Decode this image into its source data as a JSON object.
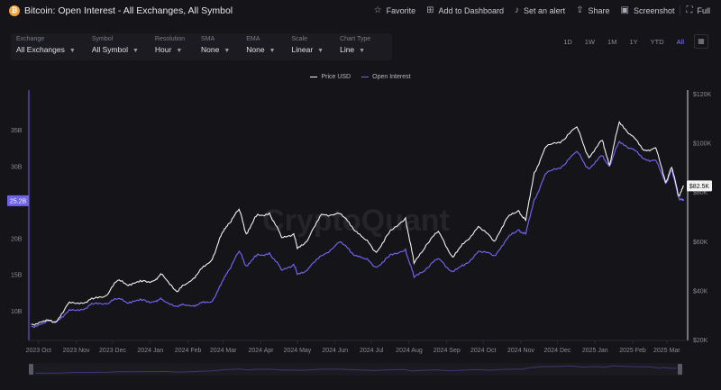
{
  "header": {
    "title": "Bitcoin: Open Interest - All Exchanges, All Symbol",
    "coin_glyph": "₿",
    "actions": [
      {
        "label": "Favorite",
        "icon": "star-icon",
        "glyph": "☆"
      },
      {
        "label": "Add to Dashboard",
        "icon": "dashboard-icon",
        "glyph": "⊞"
      },
      {
        "label": "Set an alert",
        "icon": "bell-icon",
        "glyph": "♪"
      },
      {
        "label": "Share",
        "icon": "share-icon",
        "glyph": "⇪"
      },
      {
        "label": "Screenshot",
        "icon": "camera-icon",
        "glyph": "▣"
      },
      {
        "label": "Full",
        "icon": "fullscreen-icon",
        "glyph": "⛶"
      }
    ]
  },
  "controls": [
    {
      "label": "Exchange",
      "value": "All Exchanges"
    },
    {
      "label": "Symbol",
      "value": "All Symbol"
    },
    {
      "label": "Resolution",
      "value": "Hour"
    },
    {
      "label": "SMA",
      "value": "None"
    },
    {
      "label": "EMA",
      "value": "None"
    },
    {
      "label": "Scale",
      "value": "Linear"
    },
    {
      "label": "Chart Type",
      "value": "Line"
    }
  ],
  "ranges": [
    "1D",
    "1W",
    "1M",
    "1Y",
    "YTD",
    "All"
  ],
  "active_range": "All",
  "colors": {
    "price": "#f2f2f2",
    "oi": "#6f63e8",
    "badge": "#6f63e8",
    "bg": "#141419"
  },
  "chart_data": {
    "type": "line",
    "watermark": "CryptoQuant",
    "x_tick_labels": [
      "2023 Oct",
      "2023 Nov",
      "2023 Dec",
      "2024 Jan",
      "2024 Feb",
      "2024 Mar",
      "2024 Apr",
      "2024 May",
      "2024 Jun",
      "2024 Jul",
      "2024 Aug",
      "2024 Sep",
      "2024 Oct",
      "2024 Nov",
      "2024 Dec",
      "2025 Jan",
      "2025 Feb",
      "2025 Mar"
    ],
    "left_axis": {
      "ticks": [
        "10B",
        "15B",
        "20B",
        "30B",
        "35B"
      ],
      "tick_values": [
        10,
        15,
        20,
        30,
        35
      ],
      "ylim": [
        6,
        40
      ]
    },
    "right_axis": {
      "ticks": [
        "$20K",
        "$40K",
        "$60K",
        "$80K",
        "$100K",
        "$120K"
      ],
      "tick_values": [
        20000,
        40000,
        60000,
        80000,
        100000,
        120000
      ],
      "ylim": [
        20000,
        120000
      ]
    },
    "current_oi_label": "25.2B",
    "current_price_label": "$82.5K",
    "series": [
      {
        "name": "Price USD",
        "axis": "right",
        "points": [
          [
            "2023-09-25",
            26200
          ],
          [
            "2023-10-05",
            27600
          ],
          [
            "2023-10-15",
            27000
          ],
          [
            "2023-10-25",
            34300
          ],
          [
            "2023-11-05",
            35000
          ],
          [
            "2023-11-15",
            36500
          ],
          [
            "2023-11-25",
            37700
          ],
          [
            "2023-12-05",
            44000
          ],
          [
            "2023-12-15",
            42500
          ],
          [
            "2023-12-25",
            43500
          ],
          [
            "2024-01-05",
            44200
          ],
          [
            "2024-01-11",
            46500
          ],
          [
            "2024-01-23",
            39500
          ],
          [
            "2024-02-01",
            43000
          ],
          [
            "2024-02-10",
            47500
          ],
          [
            "2024-02-20",
            52000
          ],
          [
            "2024-02-28",
            62000
          ],
          [
            "2024-03-05",
            67000
          ],
          [
            "2024-03-14",
            73000
          ],
          [
            "2024-03-20",
            63000
          ],
          [
            "2024-03-28",
            70000
          ],
          [
            "2024-04-08",
            71500
          ],
          [
            "2024-04-18",
            61500
          ],
          [
            "2024-04-28",
            63000
          ],
          [
            "2024-05-01",
            57000
          ],
          [
            "2024-05-10",
            61000
          ],
          [
            "2024-05-21",
            71000
          ],
          [
            "2024-06-05",
            71200
          ],
          [
            "2024-06-15",
            66000
          ],
          [
            "2024-06-25",
            61000
          ],
          [
            "2024-07-05",
            55500
          ],
          [
            "2024-07-15",
            63000
          ],
          [
            "2024-07-29",
            69500
          ],
          [
            "2024-08-05",
            51000
          ],
          [
            "2024-08-15",
            58500
          ],
          [
            "2024-08-25",
            64000
          ],
          [
            "2024-09-06",
            53500
          ],
          [
            "2024-09-15",
            59000
          ],
          [
            "2024-09-27",
            66000
          ],
          [
            "2024-10-10",
            60000
          ],
          [
            "2024-10-20",
            69000
          ],
          [
            "2024-10-30",
            72500
          ],
          [
            "2024-11-05",
            68500
          ],
          [
            "2024-11-12",
            88000
          ],
          [
            "2024-11-22",
            98500
          ],
          [
            "2024-12-05",
            101000
          ],
          [
            "2024-12-17",
            106500
          ],
          [
            "2024-12-27",
            94000
          ],
          [
            "2025-01-07",
            101000
          ],
          [
            "2025-01-13",
            91000
          ],
          [
            "2025-01-21",
            108500
          ],
          [
            "2025-01-31",
            103000
          ],
          [
            "2025-02-10",
            97000
          ],
          [
            "2025-02-20",
            98000
          ],
          [
            "2025-02-28",
            84000
          ],
          [
            "2025-03-05",
            90000
          ],
          [
            "2025-03-11",
            78500
          ],
          [
            "2025-03-15",
            82500
          ]
        ]
      },
      {
        "name": "Open Interest",
        "axis": "left",
        "points": [
          [
            "2023-09-25",
            7.8
          ],
          [
            "2023-10-05",
            8.3
          ],
          [
            "2023-10-15",
            8.5
          ],
          [
            "2023-10-25",
            9.8
          ],
          [
            "2023-11-05",
            10.2
          ],
          [
            "2023-11-15",
            10.9
          ],
          [
            "2023-11-25",
            11.0
          ],
          [
            "2023-12-05",
            11.6
          ],
          [
            "2023-12-15",
            11.2
          ],
          [
            "2023-12-25",
            11.4
          ],
          [
            "2024-01-05",
            11.3
          ],
          [
            "2024-01-11",
            11.5
          ],
          [
            "2024-01-23",
            10.6
          ],
          [
            "2024-02-01",
            10.7
          ],
          [
            "2024-02-10",
            10.9
          ],
          [
            "2024-02-20",
            11.2
          ],
          [
            "2024-02-28",
            13.5
          ],
          [
            "2024-03-05",
            15.5
          ],
          [
            "2024-03-14",
            18.2
          ],
          [
            "2024-03-20",
            16.2
          ],
          [
            "2024-03-28",
            17.5
          ],
          [
            "2024-04-08",
            18.0
          ],
          [
            "2024-04-18",
            15.6
          ],
          [
            "2024-04-28",
            16.4
          ],
          [
            "2024-05-01",
            15.0
          ],
          [
            "2024-05-10",
            15.8
          ],
          [
            "2024-05-21",
            17.6
          ],
          [
            "2024-06-05",
            19.5
          ],
          [
            "2024-06-15",
            18.0
          ],
          [
            "2024-06-25",
            17.2
          ],
          [
            "2024-07-05",
            16.0
          ],
          [
            "2024-07-15",
            17.4
          ],
          [
            "2024-07-29",
            18.5
          ],
          [
            "2024-08-05",
            14.6
          ],
          [
            "2024-08-15",
            15.8
          ],
          [
            "2024-08-25",
            17.2
          ],
          [
            "2024-09-06",
            15.4
          ],
          [
            "2024-09-15",
            16.2
          ],
          [
            "2024-09-27",
            18.2
          ],
          [
            "2024-10-10",
            17.6
          ],
          [
            "2024-10-20",
            19.8
          ],
          [
            "2024-10-30",
            21.2
          ],
          [
            "2024-11-05",
            20.6
          ],
          [
            "2024-11-12",
            25.4
          ],
          [
            "2024-11-22",
            29.0
          ],
          [
            "2024-12-05",
            30.0
          ],
          [
            "2024-12-17",
            32.0
          ],
          [
            "2024-12-27",
            29.6
          ],
          [
            "2025-01-07",
            31.4
          ],
          [
            "2025-01-13",
            30.0
          ],
          [
            "2025-01-21",
            33.4
          ],
          [
            "2025-01-31",
            32.4
          ],
          [
            "2025-02-10",
            31.0
          ],
          [
            "2025-02-20",
            30.8
          ],
          [
            "2025-02-28",
            27.6
          ],
          [
            "2025-03-05",
            29.4
          ],
          [
            "2025-03-11",
            25.6
          ],
          [
            "2025-03-15",
            25.2
          ]
        ]
      }
    ]
  }
}
